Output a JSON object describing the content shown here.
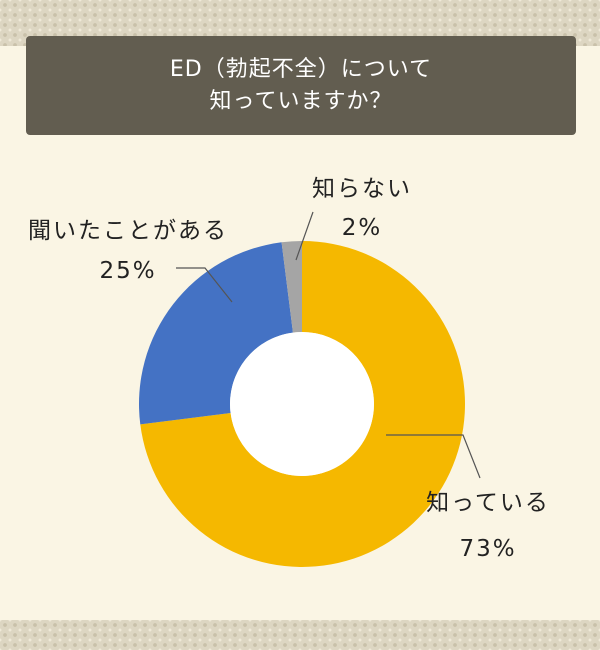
{
  "title": {
    "line1": "ED（勃起不全）について",
    "line2": "知っていますか？"
  },
  "colors": {
    "background": "#faf5e4",
    "title_box": "#625d50",
    "know": "#f5b800",
    "heard": "#4472c4",
    "dont_know": "#a5a5a5"
  },
  "chart_data": {
    "type": "pie",
    "style": "donut",
    "title": "ED（勃起不全）について知っていますか？",
    "start": "top, clockwise",
    "slices": [
      {
        "label": "知っている",
        "value": 73,
        "value_label": "73%",
        "color": "#f5b800"
      },
      {
        "label": "聞いたことがある",
        "value": 25,
        "value_label": "25%",
        "color": "#4472c4"
      },
      {
        "label": "知らない",
        "value": 2,
        "value_label": "2%",
        "color": "#a5a5a5"
      }
    ]
  }
}
